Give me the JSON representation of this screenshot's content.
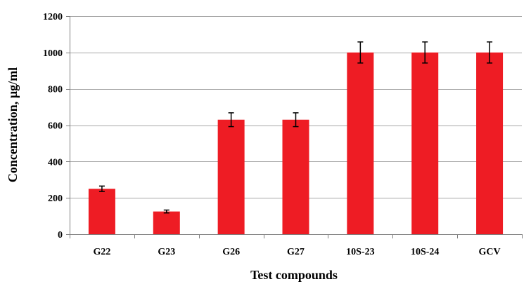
{
  "chart_data": {
    "type": "bar",
    "title": "",
    "xlabel": "Test compounds",
    "ylabel": "Concentration, µg/ml",
    "categories": [
      "G22",
      "G23",
      "G26",
      "G27",
      "10S-23",
      "10S-24",
      "GCV"
    ],
    "values": [
      250,
      125,
      630,
      630,
      1000,
      1000,
      1000
    ],
    "errors": [
      15,
      8,
      38,
      38,
      58,
      58,
      58
    ],
    "ylim": [
      0,
      1200
    ],
    "yticks": [
      0,
      200,
      400,
      600,
      800,
      1000,
      1200
    ],
    "ytick_labels": [
      "0",
      "200",
      "400",
      "600",
      "800",
      "1000",
      "1200"
    ],
    "grid": true,
    "bar_color": "#ee1c24",
    "grid_color": "#a6a6a6"
  }
}
